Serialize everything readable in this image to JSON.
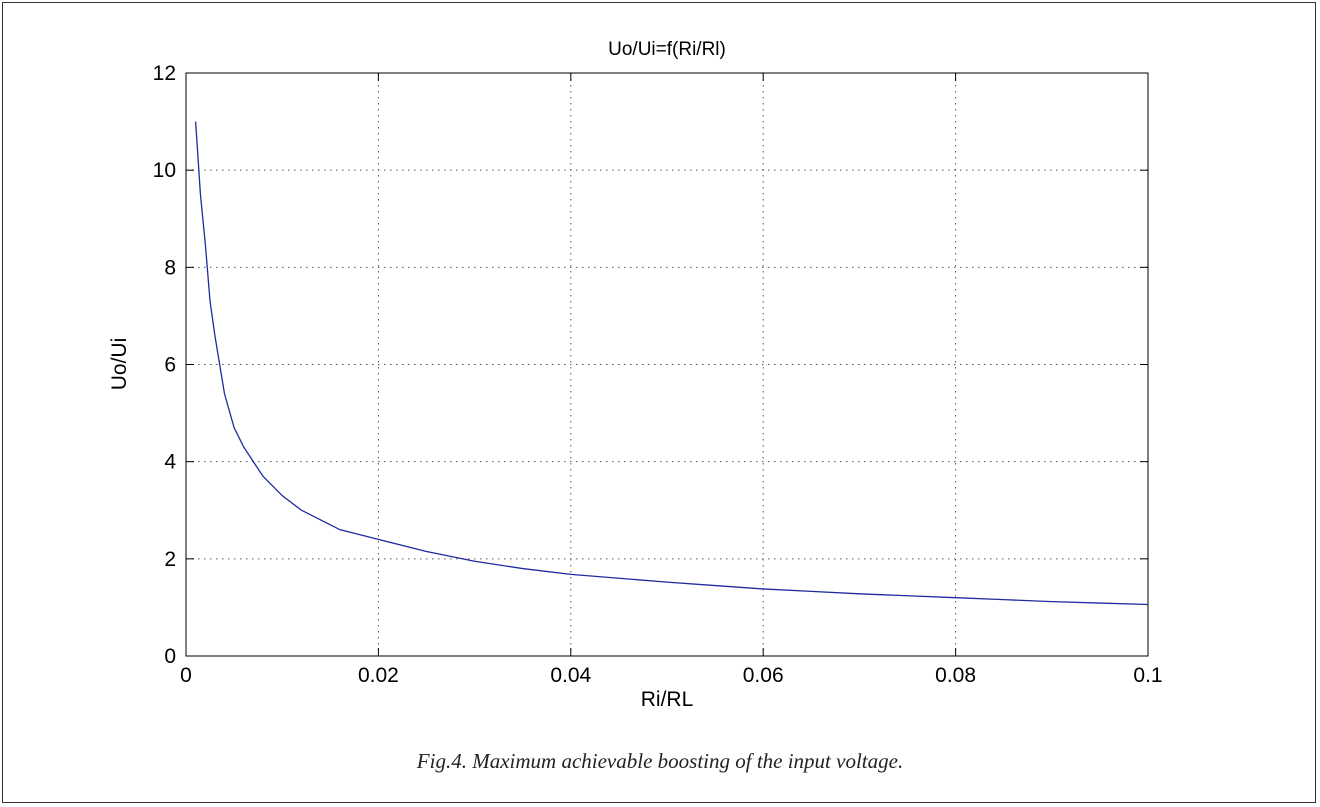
{
  "chart_data": {
    "type": "line",
    "title": "Uo/Ui=f(Ri/Rl)",
    "xlabel": "Ri/RL",
    "ylabel": "Uo/Ui",
    "xlim": [
      0,
      0.1
    ],
    "ylim": [
      0,
      12
    ],
    "x_ticks": [
      "0",
      "0.02",
      "0.04",
      "0.06",
      "0.08",
      "0.1"
    ],
    "y_ticks": [
      "0",
      "2",
      "4",
      "6",
      "8",
      "10",
      "12"
    ],
    "grid": true,
    "grid_style": "dotted",
    "line_color": "#1f2a9e",
    "series": [
      {
        "x": [
          0.001,
          0.0015,
          0.002,
          0.0025,
          0.003,
          0.0035,
          0.004,
          0.005,
          0.006,
          0.007,
          0.008,
          0.009,
          0.01,
          0.012,
          0.014,
          0.016,
          0.018,
          0.02,
          0.025,
          0.03,
          0.035,
          0.04,
          0.045,
          0.05,
          0.055,
          0.06,
          0.065,
          0.07,
          0.075,
          0.08,
          0.085,
          0.09,
          0.095,
          0.1
        ],
        "values": [
          11.0,
          9.5,
          8.5,
          7.3,
          6.6,
          6.0,
          5.4,
          4.7,
          4.3,
          4.0,
          3.7,
          3.5,
          3.3,
          3.0,
          2.8,
          2.6,
          2.5,
          2.4,
          2.15,
          1.95,
          1.8,
          1.68,
          1.6,
          1.52,
          1.45,
          1.38,
          1.33,
          1.28,
          1.24,
          1.2,
          1.16,
          1.12,
          1.09,
          1.06
        ]
      }
    ]
  },
  "caption": "Fig.4. Maximum achievable boosting of the input voltage."
}
